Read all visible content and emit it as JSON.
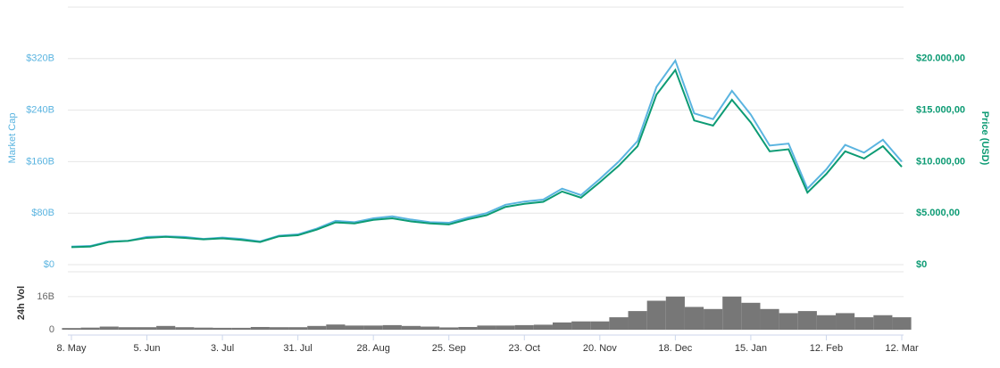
{
  "chart_data": {
    "type": "line",
    "categories": [
      "8. May",
      null,
      null,
      null,
      "5. Jun",
      null,
      null,
      null,
      "3. Jul",
      null,
      null,
      null,
      "31. Jul",
      null,
      null,
      null,
      "28. Aug",
      null,
      null,
      null,
      "25. Sep",
      null,
      null,
      null,
      "23. Oct",
      null,
      null,
      null,
      "20. Nov",
      null,
      null,
      null,
      "18. Dec",
      null,
      null,
      null,
      "15. Jan",
      null,
      null,
      null,
      "12. Feb",
      null,
      null,
      null,
      "12. Mar"
    ],
    "ylabel": "Market Cap",
    "y2label": "Price (USD)",
    "ylim": [
      0,
      400
    ],
    "yticks": [
      {
        "value": 0,
        "label": "$0"
      },
      {
        "value": 80,
        "label": "$80B"
      },
      {
        "value": 160,
        "label": "$160B"
      },
      {
        "value": 240,
        "label": "$240B"
      },
      {
        "value": 320,
        "label": "$320B"
      }
    ],
    "y2lim": [
      0,
      25000
    ],
    "y2ticks": [
      {
        "value": 0,
        "label": "$0"
      },
      {
        "value": 5000,
        "label": "$5.000,00"
      },
      {
        "value": 10000,
        "label": "$10.000,00"
      },
      {
        "value": 15000,
        "label": "$15.000,00"
      },
      {
        "value": 20000,
        "label": "$20.000,00"
      }
    ],
    "grid": true,
    "series": [
      {
        "name": "Market Cap",
        "color": "#5ab4e0",
        "values": [
          28,
          29,
          36,
          37,
          43,
          44,
          43,
          40,
          42,
          40,
          36,
          45,
          47,
          56,
          68,
          66,
          72,
          75,
          70,
          66,
          65,
          73,
          80,
          93,
          98,
          101,
          118,
          108,
          133,
          160,
          192,
          276,
          317,
          235,
          226,
          270,
          233,
          185,
          188,
          118,
          148,
          186,
          174,
          194,
          160
        ]
      },
      {
        "name": "Price (USD)",
        "color": "#0d9b74",
        "axis": "y2",
        "values": [
          1700,
          1750,
          2200,
          2300,
          2600,
          2700,
          2600,
          2450,
          2550,
          2400,
          2200,
          2750,
          2850,
          3400,
          4100,
          4000,
          4350,
          4500,
          4200,
          4000,
          3900,
          4400,
          4800,
          5600,
          5900,
          6100,
          7100,
          6500,
          8000,
          9600,
          11500,
          16500,
          18900,
          14000,
          13500,
          16000,
          13800,
          11000,
          11200,
          7000,
          8800,
          11000,
          10300,
          11500,
          9500
        ]
      }
    ],
    "volume": {
      "ylabel": "24h Vol",
      "color": "#777777",
      "ylim": [
        0,
        28
      ],
      "yticks": [
        0,
        {
          "value": 16,
          "label": "16B"
        }
      ],
      "values": [
        0.8,
        1.0,
        1.5,
        1.2,
        1.2,
        1.8,
        1.2,
        1.0,
        0.9,
        0.9,
        1.3,
        1.2,
        1.2,
        1.8,
        2.5,
        2.0,
        2.0,
        2.2,
        1.8,
        1.5,
        1.1,
        1.3,
        2.0,
        2.0,
        2.2,
        2.4,
        3.5,
        4.0,
        4.0,
        6.0,
        9.0,
        14,
        16,
        11,
        10,
        16,
        13,
        10,
        8,
        9,
        7,
        8,
        6,
        7,
        6
      ]
    }
  }
}
